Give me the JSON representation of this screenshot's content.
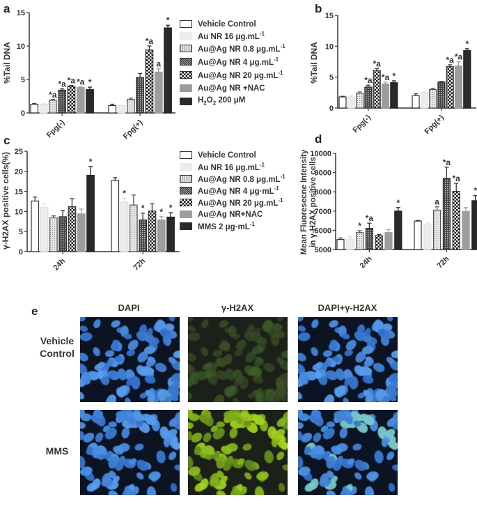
{
  "colors": {
    "vehicle": "#ffffff",
    "au": "#ececec",
    "agLow": "#d8d8d8",
    "agMid": "#5e5e5e",
    "agHigh": "#111111",
    "nac": "#9a9e9e",
    "pos": "#2a2a2a"
  },
  "legend_a": [
    [
      {
        "t": "Vehicle Control"
      }
    ],
    [
      {
        "t": "Au NR 16  μg.mL"
      },
      {
        "t": "-1",
        "s": "sup"
      }
    ],
    [
      {
        "t": "Au@Ag NR 0.8 μg.mL"
      },
      {
        "t": "-1",
        "s": "sup"
      }
    ],
    [
      {
        "t": "Au@Ag NR 4 μg.mL"
      },
      {
        "t": "-1",
        "s": "sup"
      }
    ],
    [
      {
        "t": "Au@Ag NR 20 μg.mL"
      },
      {
        "t": "-1",
        "s": "sup"
      }
    ],
    [
      {
        "t": "Au@Ag NR +NAC"
      }
    ],
    [
      {
        "t": "H"
      },
      {
        "t": "2",
        "s": "sub"
      },
      {
        "t": "O"
      },
      {
        "t": "2",
        "s": "sub"
      },
      {
        "t": " 200  μM"
      }
    ]
  ],
  "legend_c": [
    [
      {
        "t": "Vehicle Control"
      }
    ],
    [
      {
        "t": "Au NR 16 μg.mL"
      },
      {
        "t": "-1",
        "s": "sup"
      }
    ],
    [
      {
        "t": "Au@Ag NR 0.8 μg.mL"
      },
      {
        "t": "-1",
        "s": "sup"
      }
    ],
    [
      {
        "t": "Au@Ag NR 4 μg·mL"
      },
      {
        "t": "-1",
        "s": "sup"
      }
    ],
    [
      {
        "t": "Au@Ag NR 20 μg.mL"
      },
      {
        "t": "-1",
        "s": "sup"
      }
    ],
    [
      {
        "t": "Au@Ag NR+NAC"
      }
    ],
    [
      {
        "t": "MMS 2 μg·mL"
      },
      {
        "t": "-1",
        "s": "sup"
      }
    ]
  ],
  "chart_data": [
    {
      "panel": "a",
      "type": "bar",
      "ylabel": "%Tail DNA",
      "ylim": [
        0,
        15
      ],
      "yticks": [
        0,
        5,
        10,
        15
      ],
      "categories": [
        "Fpg(-)",
        "Fpg(+)"
      ],
      "series_values": [
        [
          1.3,
          1.3,
          1.9,
          3.4,
          4.0,
          3.8,
          3.5
        ],
        [
          1.1,
          1.1,
          2.0,
          5.3,
          9.4,
          6.1,
          12.7
        ]
      ],
      "errors": [
        [
          0.1,
          0.05,
          0.1,
          0.2,
          0.1,
          0.1,
          0.35
        ],
        [
          0.2,
          0.05,
          0.2,
          0.6,
          0.6,
          0.5,
          0.4
        ]
      ],
      "annotations": [
        [
          "",
          "",
          "*a",
          "*a",
          "*a",
          "*a",
          "*"
        ],
        [
          "",
          "",
          "",
          "",
          "*a",
          "a",
          "*"
        ]
      ]
    },
    {
      "panel": "b",
      "type": "bar",
      "ylabel": "%Tail DNA",
      "ylim": [
        0,
        15
      ],
      "yticks": [
        0,
        5,
        10,
        15
      ],
      "categories": [
        "Fpg(-)",
        "Fpg(+)"
      ],
      "series_values": [
        [
          1.8,
          1.8,
          2.4,
          3.4,
          6.1,
          3.9,
          4.1
        ],
        [
          2.0,
          2.5,
          3.0,
          4.2,
          6.7,
          6.8,
          9.3
        ]
      ],
      "errors": [
        [
          0.1,
          0.2,
          0.2,
          0.3,
          0.3,
          0.3,
          0.3
        ],
        [
          0.3,
          0.1,
          0.2,
          0.1,
          0.3,
          0.7,
          0.3
        ]
      ],
      "annotations": [
        [
          "",
          "",
          "",
          "*a",
          "*a",
          "*a",
          "*"
        ],
        [
          "",
          "",
          "",
          "",
          "*a",
          "*a",
          "*"
        ]
      ]
    },
    {
      "panel": "c",
      "type": "bar",
      "ylabel": "γ-H2AX positive cells(%)",
      "ylim": [
        0,
        25
      ],
      "yticks": [
        0,
        5,
        10,
        15,
        20,
        25
      ],
      "categories": [
        "24h",
        "72h"
      ],
      "series_values": [
        [
          12.6,
          11.0,
          8.4,
          8.7,
          11.2,
          9.4,
          19.0
        ],
        [
          17.7,
          12.3,
          11.6,
          7.9,
          10.1,
          7.9,
          8.6
        ]
      ],
      "errors": [
        [
          1.0,
          1.0,
          0.5,
          1.6,
          2.0,
          1.2,
          2.2
        ],
        [
          0.7,
          1.0,
          2.5,
          1.7,
          1.8,
          0.8,
          1.1
        ]
      ],
      "annotations": [
        [
          "",
          "",
          "",
          "",
          "",
          "",
          "*"
        ],
        [
          "",
          "*",
          "",
          "*",
          "",
          "*",
          "*"
        ]
      ]
    },
    {
      "panel": "d",
      "type": "bar",
      "ylabel": [
        "Mean Fluoresecne Intensity",
        "in γ-H2AX  positive cells"
      ],
      "ylim": [
        5000,
        10000
      ],
      "yticks": [
        5000,
        6000,
        7000,
        8000,
        9000,
        10000
      ],
      "categories": [
        "24h",
        "72h"
      ],
      "series_values": [
        [
          5520,
          5550,
          5880,
          6100,
          5720,
          5880,
          7000
        ],
        [
          6480,
          6280,
          7050,
          8700,
          8020,
          6980,
          7540
        ]
      ],
      "errors": [
        [
          80,
          130,
          100,
          270,
          60,
          160,
          180
        ],
        [
          30,
          100,
          170,
          580,
          420,
          200,
          260
        ]
      ],
      "annotations": [
        [
          "",
          "",
          "*",
          "*a",
          "",
          "",
          "*"
        ],
        [
          "",
          "",
          "a",
          "*a",
          "*a",
          "",
          "*"
        ]
      ]
    }
  ],
  "panel_e": {
    "label": "e",
    "columns": [
      "DAPI",
      "γ-H2AX",
      "DAPI+γ-H2AX"
    ],
    "rows": [
      "Vehicle Control",
      "MMS"
    ]
  },
  "panel_labels": [
    "a",
    "b",
    "c",
    "d"
  ]
}
